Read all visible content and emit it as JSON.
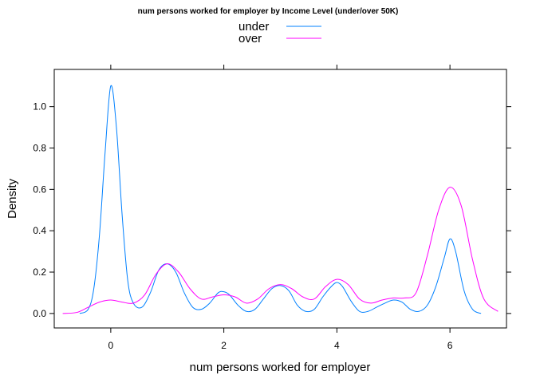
{
  "chart_data": {
    "type": "line",
    "title": "num persons worked for employer by Income Level (under/over 50K)",
    "xlabel": "num persons worked for employer",
    "ylabel": "Density",
    "xlim": [
      -1.0,
      7.0
    ],
    "ylim": [
      -0.07,
      1.18
    ],
    "x_ticks": [
      "0",
      "2",
      "4",
      "6"
    ],
    "y_ticks": [
      "0.0",
      "0.2",
      "0.4",
      "0.6",
      "0.8",
      "1.0"
    ],
    "legend_position": "top",
    "series": [
      {
        "name": "under",
        "color": "#0080ff",
        "x": [
          -0.55,
          -0.4,
          -0.3,
          -0.2,
          -0.1,
          0.0,
          0.1,
          0.2,
          0.3,
          0.4,
          0.55,
          0.7,
          0.85,
          1.0,
          1.15,
          1.3,
          1.45,
          1.6,
          1.75,
          1.9,
          2.0,
          2.1,
          2.25,
          2.4,
          2.55,
          2.7,
          2.85,
          3.0,
          3.15,
          3.3,
          3.45,
          3.6,
          3.75,
          3.9,
          4.0,
          4.1,
          4.25,
          4.4,
          4.55,
          4.7,
          4.85,
          5.0,
          5.15,
          5.3,
          5.45,
          5.6,
          5.75,
          5.9,
          6.0,
          6.1,
          6.25,
          6.4,
          6.55
        ],
        "y": [
          0.0,
          0.02,
          0.12,
          0.38,
          0.78,
          1.1,
          0.9,
          0.48,
          0.16,
          0.05,
          0.03,
          0.1,
          0.21,
          0.24,
          0.2,
          0.1,
          0.03,
          0.02,
          0.05,
          0.1,
          0.105,
          0.09,
          0.04,
          0.01,
          0.02,
          0.07,
          0.12,
          0.135,
          0.11,
          0.04,
          0.01,
          0.02,
          0.08,
          0.13,
          0.15,
          0.13,
          0.06,
          0.01,
          0.01,
          0.03,
          0.05,
          0.065,
          0.055,
          0.02,
          0.01,
          0.04,
          0.13,
          0.27,
          0.36,
          0.3,
          0.11,
          0.02,
          0.0
        ]
      },
      {
        "name": "over",
        "color": "#ff00ff",
        "x": [
          -0.85,
          -0.6,
          -0.4,
          -0.2,
          0.0,
          0.2,
          0.4,
          0.6,
          0.8,
          1.0,
          1.2,
          1.4,
          1.6,
          1.8,
          2.0,
          2.2,
          2.4,
          2.6,
          2.8,
          3.0,
          3.2,
          3.4,
          3.6,
          3.8,
          4.0,
          4.2,
          4.4,
          4.6,
          4.8,
          5.0,
          5.2,
          5.4,
          5.6,
          5.8,
          6.0,
          6.2,
          6.4,
          6.6,
          6.85
        ],
        "y": [
          0.0,
          0.005,
          0.03,
          0.055,
          0.065,
          0.055,
          0.05,
          0.09,
          0.19,
          0.24,
          0.2,
          0.12,
          0.07,
          0.08,
          0.09,
          0.08,
          0.05,
          0.07,
          0.12,
          0.14,
          0.12,
          0.08,
          0.07,
          0.13,
          0.165,
          0.14,
          0.07,
          0.05,
          0.065,
          0.075,
          0.075,
          0.1,
          0.28,
          0.5,
          0.61,
          0.52,
          0.26,
          0.07,
          0.01
        ]
      }
    ]
  }
}
